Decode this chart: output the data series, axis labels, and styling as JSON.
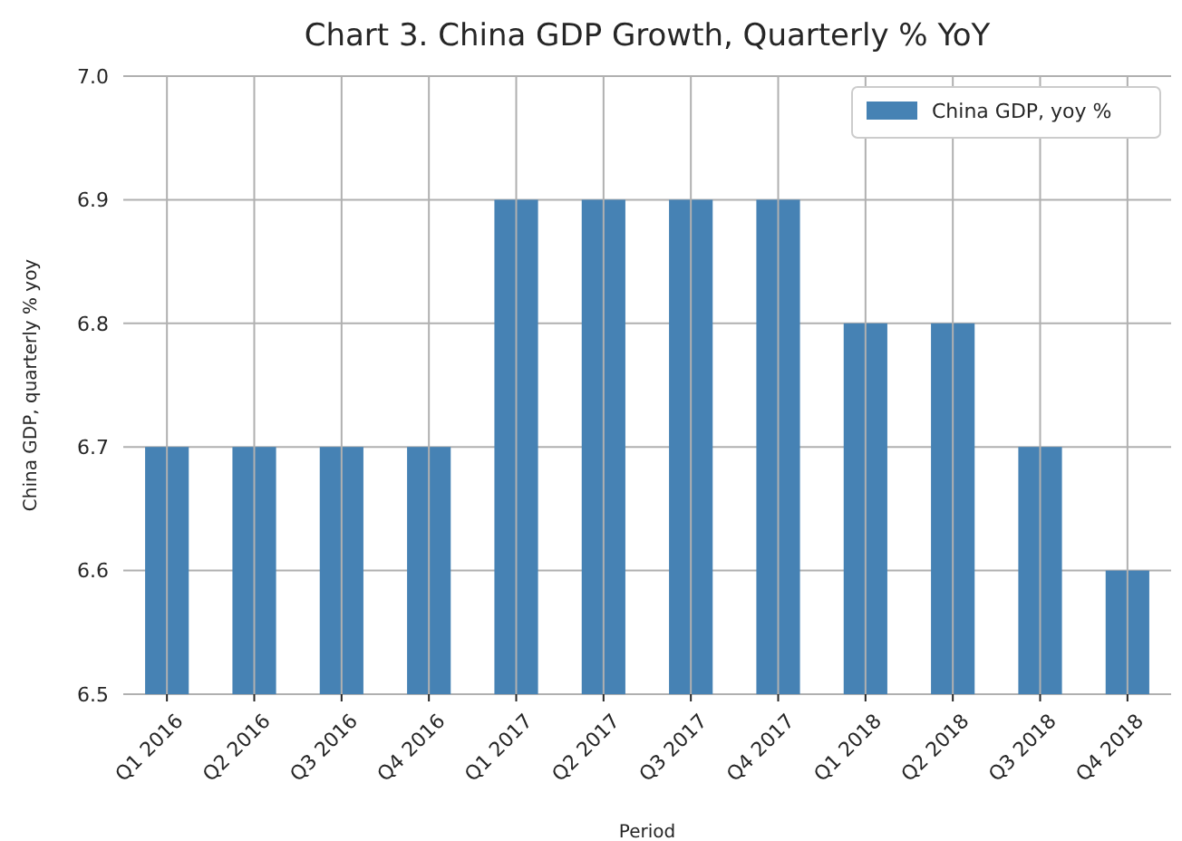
{
  "chart_data": {
    "type": "bar",
    "title": "Chart 3. China GDP Growth, Quarterly % YoY",
    "xlabel": "Period",
    "ylabel": "China GDP, quarterly % yoy",
    "categories": [
      "Q1 2016",
      "Q2 2016",
      "Q3 2016",
      "Q4 2016",
      "Q1 2017",
      "Q2 2017",
      "Q3 2017",
      "Q4 2017",
      "Q1 2018",
      "Q2 2018",
      "Q3 2018",
      "Q4 2018"
    ],
    "series": [
      {
        "name": "China GDP, yoy %",
        "color": "#4682b4",
        "values": [
          6.7,
          6.7,
          6.7,
          6.7,
          6.9,
          6.9,
          6.9,
          6.9,
          6.8,
          6.8,
          6.7,
          6.6
        ]
      }
    ],
    "ylim": [
      6.5,
      7.0
    ],
    "yticks": [
      6.5,
      6.6,
      6.7,
      6.8,
      6.9,
      {
        "value": 7,
        "label": "7.0"
      }
    ],
    "grid": true,
    "legend": "top right"
  }
}
